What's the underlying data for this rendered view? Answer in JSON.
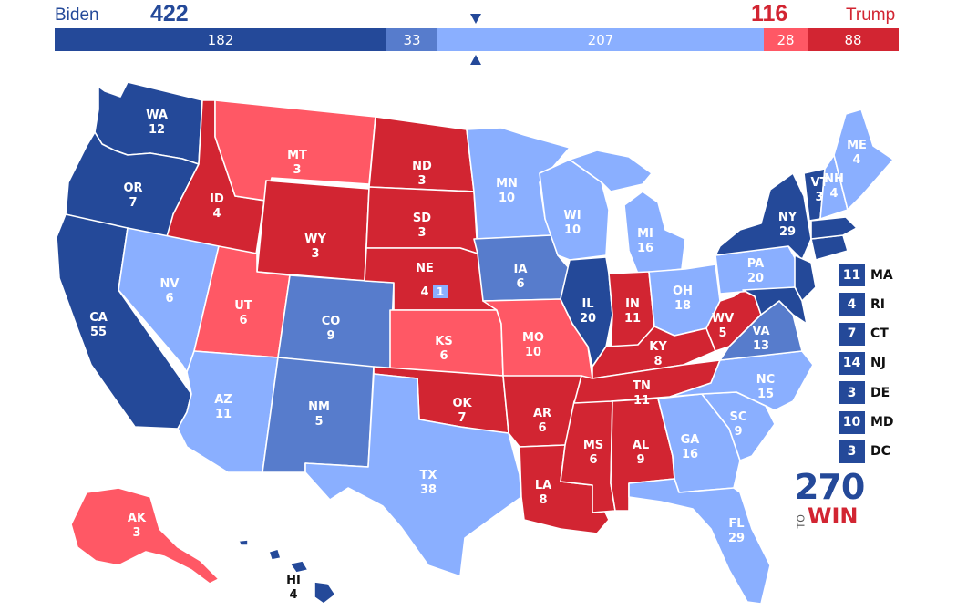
{
  "header": {
    "left_name": "Biden",
    "left_total": "422",
    "right_name": "Trump",
    "right_total": "116"
  },
  "colors": {
    "safe_d": "#244999",
    "likely_d": "#577ccc",
    "lean_d": "#8aafff",
    "lean_r": "#ff5865",
    "likely_r": "#d22532",
    "safe_r": "#d22532"
  },
  "bar": {
    "segments": [
      {
        "value": "182",
        "color": "#244999"
      },
      {
        "value": "33",
        "color": "#577ccc"
      },
      {
        "value": "207",
        "color": "#8aafff"
      },
      {
        "value": "28",
        "color": "#ff5865"
      },
      {
        "value": "88",
        "color": "#d22532"
      }
    ]
  },
  "states": [
    {
      "abbr": "WA",
      "ev": "12"
    },
    {
      "abbr": "OR",
      "ev": "7"
    },
    {
      "abbr": "CA",
      "ev": "55"
    },
    {
      "abbr": "ID",
      "ev": "4"
    },
    {
      "abbr": "NV",
      "ev": "6"
    },
    {
      "abbr": "MT",
      "ev": "3"
    },
    {
      "abbr": "WY",
      "ev": "3"
    },
    {
      "abbr": "UT",
      "ev": "6"
    },
    {
      "abbr": "AZ",
      "ev": "11"
    },
    {
      "abbr": "CO",
      "ev": "9"
    },
    {
      "abbr": "NM",
      "ev": "5"
    },
    {
      "abbr": "ND",
      "ev": "3"
    },
    {
      "abbr": "SD",
      "ev": "3"
    },
    {
      "abbr": "NE",
      "ev": "4"
    },
    {
      "abbr": "KS",
      "ev": "6"
    },
    {
      "abbr": "OK",
      "ev": "7"
    },
    {
      "abbr": "TX",
      "ev": "38"
    },
    {
      "abbr": "MN",
      "ev": "10"
    },
    {
      "abbr": "IA",
      "ev": "6"
    },
    {
      "abbr": "MO",
      "ev": "10"
    },
    {
      "abbr": "AR",
      "ev": "6"
    },
    {
      "abbr": "LA",
      "ev": "8"
    },
    {
      "abbr": "WI",
      "ev": "10"
    },
    {
      "abbr": "IL",
      "ev": "20"
    },
    {
      "abbr": "MS",
      "ev": "6"
    },
    {
      "abbr": "MI",
      "ev": "16"
    },
    {
      "abbr": "IN",
      "ev": "11"
    },
    {
      "abbr": "KY",
      "ev": "8"
    },
    {
      "abbr": "TN",
      "ev": "11"
    },
    {
      "abbr": "AL",
      "ev": "9"
    },
    {
      "abbr": "OH",
      "ev": "18"
    },
    {
      "abbr": "WV",
      "ev": "5"
    },
    {
      "abbr": "GA",
      "ev": "16"
    },
    {
      "abbr": "FL",
      "ev": "29"
    },
    {
      "abbr": "SC",
      "ev": "9"
    },
    {
      "abbr": "NC",
      "ev": "15"
    },
    {
      "abbr": "VA",
      "ev": "13"
    },
    {
      "abbr": "PA",
      "ev": "20"
    },
    {
      "abbr": "NY",
      "ev": "29"
    },
    {
      "abbr": "VT",
      "ev": "3"
    },
    {
      "abbr": "NH",
      "ev": "4"
    },
    {
      "abbr": "ME",
      "ev": "4"
    },
    {
      "abbr": "AK",
      "ev": "3"
    },
    {
      "abbr": "HI",
      "ev": "4"
    }
  ],
  "ne_district": "1",
  "small_states": [
    {
      "ev": "11",
      "abbr": "MA"
    },
    {
      "ev": "4",
      "abbr": "RI"
    },
    {
      "ev": "7",
      "abbr": "CT"
    },
    {
      "ev": "14",
      "abbr": "NJ"
    },
    {
      "ev": "3",
      "abbr": "DE"
    },
    {
      "ev": "10",
      "abbr": "MD"
    },
    {
      "ev": "3",
      "abbr": "DC"
    }
  ],
  "logo": {
    "top": "270",
    "to": "TO",
    "win": "WIN"
  }
}
